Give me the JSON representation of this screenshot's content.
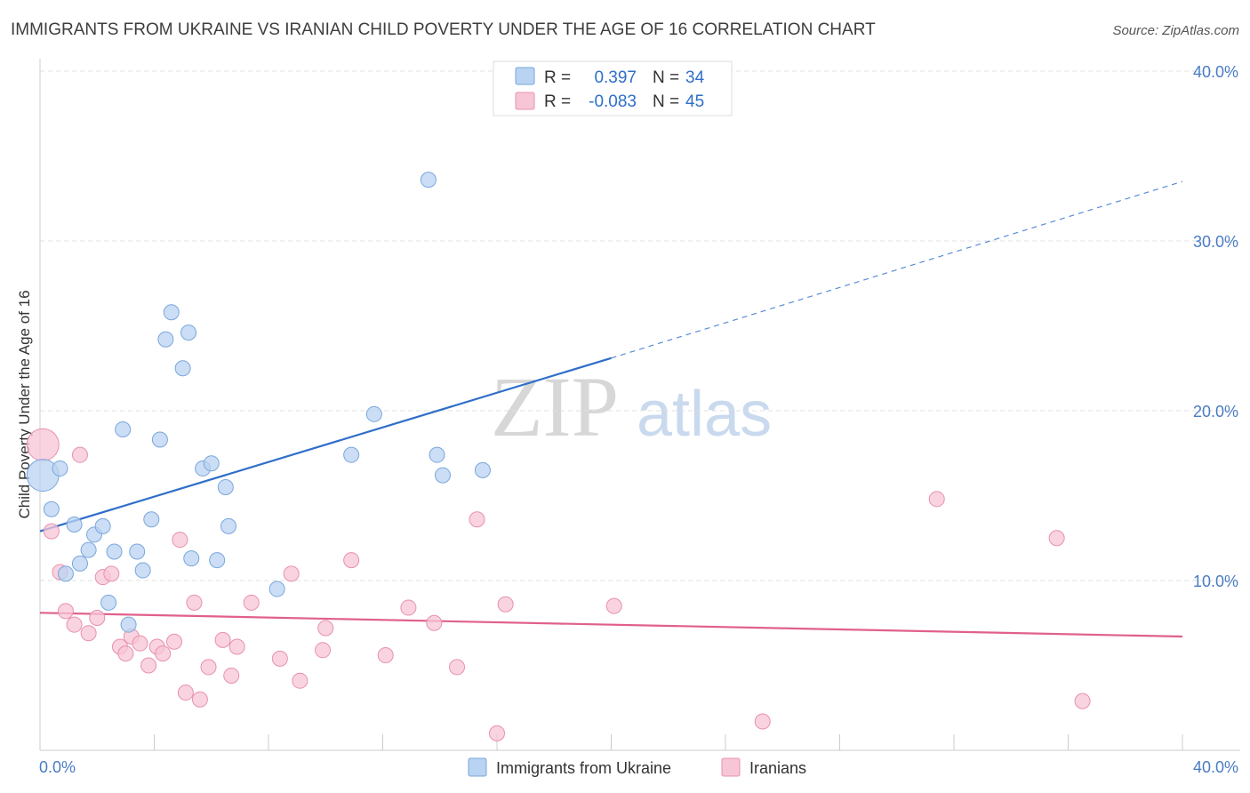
{
  "title": "IMMIGRANTS FROM UKRAINE VS IRANIAN CHILD POVERTY UNDER THE AGE OF 16 CORRELATION CHART",
  "source": "Source: ZipAtlas.com",
  "watermark": {
    "zip": "ZIP",
    "atlas": "atlas"
  },
  "colors": {
    "blue_fill": "#b9d3f2",
    "blue_stroke": "#7aa6dc",
    "blue_line": "#2f6fc9",
    "pink_fill": "#f7c6d6",
    "pink_stroke": "#e890ad",
    "pink_line": "#e0608c",
    "grid": "#e0e0e0",
    "axis": "#cccccc",
    "tick_text": "#4a7cc4"
  },
  "legend": {
    "rows": [
      {
        "r_label": "R =",
        "r_value": "0.397",
        "n_label": "N =",
        "n_value": "34"
      },
      {
        "r_label": "R =",
        "r_value": "-0.083",
        "n_label": "N =",
        "n_value": "45"
      }
    ]
  },
  "chart_data": {
    "type": "scatter",
    "title": "IMMIGRANTS FROM UKRAINE VS IRANIAN CHILD POVERTY UNDER THE AGE OF 16 CORRELATION CHART",
    "xlabel": "",
    "ylabel": "Child Poverty Under the Age of 16",
    "xlim": [
      0,
      40
    ],
    "ylim": [
      0,
      40
    ],
    "x_tick_labels": [
      "0.0%",
      "40.0%"
    ],
    "y_ticks": [
      10,
      20,
      30,
      40
    ],
    "y_tick_labels": [
      "10.0%",
      "20.0%",
      "30.0%",
      "40.0%"
    ],
    "grid": true,
    "legend_position": "top-center",
    "series": [
      {
        "name": "Immigrants from Ukraine",
        "color": "#b9d3f2",
        "r": 0.397,
        "n": 34,
        "points": [
          {
            "x": 0.1,
            "y": 16.2,
            "size": "large"
          },
          {
            "x": 0.4,
            "y": 14.2
          },
          {
            "x": 0.7,
            "y": 16.6
          },
          {
            "x": 0.9,
            "y": 10.4
          },
          {
            "x": 1.2,
            "y": 13.3
          },
          {
            "x": 1.4,
            "y": 11.0
          },
          {
            "x": 1.7,
            "y": 11.8
          },
          {
            "x": 1.9,
            "y": 12.7
          },
          {
            "x": 2.2,
            "y": 13.2
          },
          {
            "x": 2.4,
            "y": 8.7
          },
          {
            "x": 2.6,
            "y": 11.7
          },
          {
            "x": 2.9,
            "y": 18.9
          },
          {
            "x": 3.1,
            "y": 7.4
          },
          {
            "x": 3.4,
            "y": 11.7
          },
          {
            "x": 3.6,
            "y": 10.6
          },
          {
            "x": 3.9,
            "y": 13.6
          },
          {
            "x": 4.2,
            "y": 18.3
          },
          {
            "x": 4.4,
            "y": 24.2
          },
          {
            "x": 4.6,
            "y": 25.8
          },
          {
            "x": 5.0,
            "y": 22.5
          },
          {
            "x": 5.2,
            "y": 24.6
          },
          {
            "x": 5.3,
            "y": 11.3
          },
          {
            "x": 5.7,
            "y": 16.6
          },
          {
            "x": 6.0,
            "y": 16.9
          },
          {
            "x": 6.2,
            "y": 11.2
          },
          {
            "x": 6.5,
            "y": 15.5
          },
          {
            "x": 6.6,
            "y": 13.2
          },
          {
            "x": 8.3,
            "y": 9.5
          },
          {
            "x": 10.9,
            "y": 17.4
          },
          {
            "x": 11.7,
            "y": 19.8
          },
          {
            "x": 13.6,
            "y": 33.6
          },
          {
            "x": 13.9,
            "y": 17.4
          },
          {
            "x": 14.1,
            "y": 16.2
          },
          {
            "x": 15.5,
            "y": 16.5
          }
        ]
      },
      {
        "name": "Iranians",
        "color": "#f7c6d6",
        "r": -0.083,
        "n": 45,
        "points": [
          {
            "x": 0.1,
            "y": 18.0,
            "size": "large"
          },
          {
            "x": 0.4,
            "y": 12.9
          },
          {
            "x": 0.7,
            "y": 10.5
          },
          {
            "x": 0.9,
            "y": 8.2
          },
          {
            "x": 1.2,
            "y": 7.4
          },
          {
            "x": 1.4,
            "y": 17.4
          },
          {
            "x": 1.7,
            "y": 6.9
          },
          {
            "x": 2.0,
            "y": 7.8
          },
          {
            "x": 2.2,
            "y": 10.2
          },
          {
            "x": 2.5,
            "y": 10.4
          },
          {
            "x": 2.8,
            "y": 6.1
          },
          {
            "x": 3.0,
            "y": 5.7
          },
          {
            "x": 3.2,
            "y": 6.7
          },
          {
            "x": 3.5,
            "y": 6.3
          },
          {
            "x": 3.8,
            "y": 5.0
          },
          {
            "x": 4.1,
            "y": 6.1
          },
          {
            "x": 4.3,
            "y": 5.7
          },
          {
            "x": 4.7,
            "y": 6.4
          },
          {
            "x": 4.9,
            "y": 12.4
          },
          {
            "x": 5.1,
            "y": 3.4
          },
          {
            "x": 5.4,
            "y": 8.7
          },
          {
            "x": 5.6,
            "y": 3.0
          },
          {
            "x": 5.9,
            "y": 4.9
          },
          {
            "x": 6.4,
            "y": 6.5
          },
          {
            "x": 6.7,
            "y": 4.4
          },
          {
            "x": 6.9,
            "y": 6.1
          },
          {
            "x": 7.4,
            "y": 8.7
          },
          {
            "x": 8.4,
            "y": 5.4
          },
          {
            "x": 8.8,
            "y": 10.4
          },
          {
            "x": 9.1,
            "y": 4.1
          },
          {
            "x": 9.9,
            "y": 5.9
          },
          {
            "x": 10.0,
            "y": 7.2
          },
          {
            "x": 10.9,
            "y": 11.2
          },
          {
            "x": 12.1,
            "y": 5.6
          },
          {
            "x": 12.9,
            "y": 8.4
          },
          {
            "x": 13.8,
            "y": 7.5
          },
          {
            "x": 14.6,
            "y": 4.9
          },
          {
            "x": 15.3,
            "y": 13.6
          },
          {
            "x": 16.0,
            "y": 1.0
          },
          {
            "x": 16.3,
            "y": 8.6
          },
          {
            "x": 20.1,
            "y": 8.5
          },
          {
            "x": 25.3,
            "y": 1.7
          },
          {
            "x": 31.4,
            "y": 14.8
          },
          {
            "x": 35.6,
            "y": 12.5
          },
          {
            "x": 36.5,
            "y": 2.9
          }
        ]
      }
    ],
    "trendlines": [
      {
        "series": "Immigrants from Ukraine",
        "x0": 0,
        "y0": 12.9,
        "x1": 20.0,
        "y1": 23.1,
        "dashed_to_x": 40,
        "dashed_to_y": 33.5
      },
      {
        "series": "Iranians",
        "x0": 0,
        "y0": 8.1,
        "x1": 40,
        "y1": 6.7
      }
    ]
  }
}
